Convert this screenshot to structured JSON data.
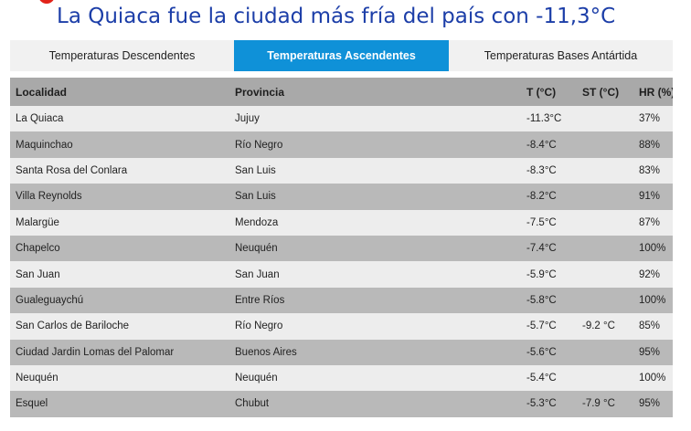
{
  "headline": "La Quiaca fue la ciudad más fría del país con -11,3°C",
  "tabs": [
    {
      "label": "Temperaturas Descendentes",
      "active": false
    },
    {
      "label": "Temperaturas Ascendentes",
      "active": true
    },
    {
      "label": "Temperaturas Bases Antártida",
      "active": false
    }
  ],
  "colors": {
    "headline": "#1c3ea8",
    "active_tab": "#0f91d8",
    "header_row": "#a9a9a9",
    "row_light": "#ededed",
    "row_dark": "#b9b9b9"
  },
  "table": {
    "headers": {
      "locality": "Localidad",
      "province": "Provincia",
      "temp": "T (°C)",
      "st": "ST (°C)",
      "hr": "HR (%)"
    },
    "rows": [
      {
        "locality": "La Quiaca",
        "province": "Jujuy",
        "temp": "-11.3°C",
        "st": "",
        "hr": "37%"
      },
      {
        "locality": "Maquinchao",
        "province": "Río Negro",
        "temp": "-8.4°C",
        "st": "",
        "hr": "88%"
      },
      {
        "locality": "Santa Rosa del Conlara",
        "province": "San Luis",
        "temp": "-8.3°C",
        "st": "",
        "hr": "83%"
      },
      {
        "locality": "Villa Reynolds",
        "province": "San Luis",
        "temp": "-8.2°C",
        "st": "",
        "hr": "91%"
      },
      {
        "locality": "Malargüe",
        "province": "Mendoza",
        "temp": "-7.5°C",
        "st": "",
        "hr": "87%"
      },
      {
        "locality": "Chapelco",
        "province": "Neuquén",
        "temp": "-7.4°C",
        "st": "",
        "hr": "100%"
      },
      {
        "locality": "San Juan",
        "province": "San Juan",
        "temp": "-5.9°C",
        "st": "",
        "hr": "92%"
      },
      {
        "locality": "Gualeguaychú",
        "province": "Entre Ríos",
        "temp": "-5.8°C",
        "st": "",
        "hr": "100%"
      },
      {
        "locality": "San Carlos de Bariloche",
        "province": "Río Negro",
        "temp": "-5.7°C",
        "st": "-9.2 °C",
        "hr": "85%"
      },
      {
        "locality": "Ciudad Jardin Lomas del Palomar",
        "province": "Buenos Aires",
        "temp": "-5.6°C",
        "st": "",
        "hr": "95%"
      },
      {
        "locality": "Neuquén",
        "province": "Neuquén",
        "temp": "-5.4°C",
        "st": "",
        "hr": "100%"
      },
      {
        "locality": "Esquel",
        "province": "Chubut",
        "temp": "-5.3°C",
        "st": "-7.9 °C",
        "hr": "95%"
      }
    ]
  }
}
